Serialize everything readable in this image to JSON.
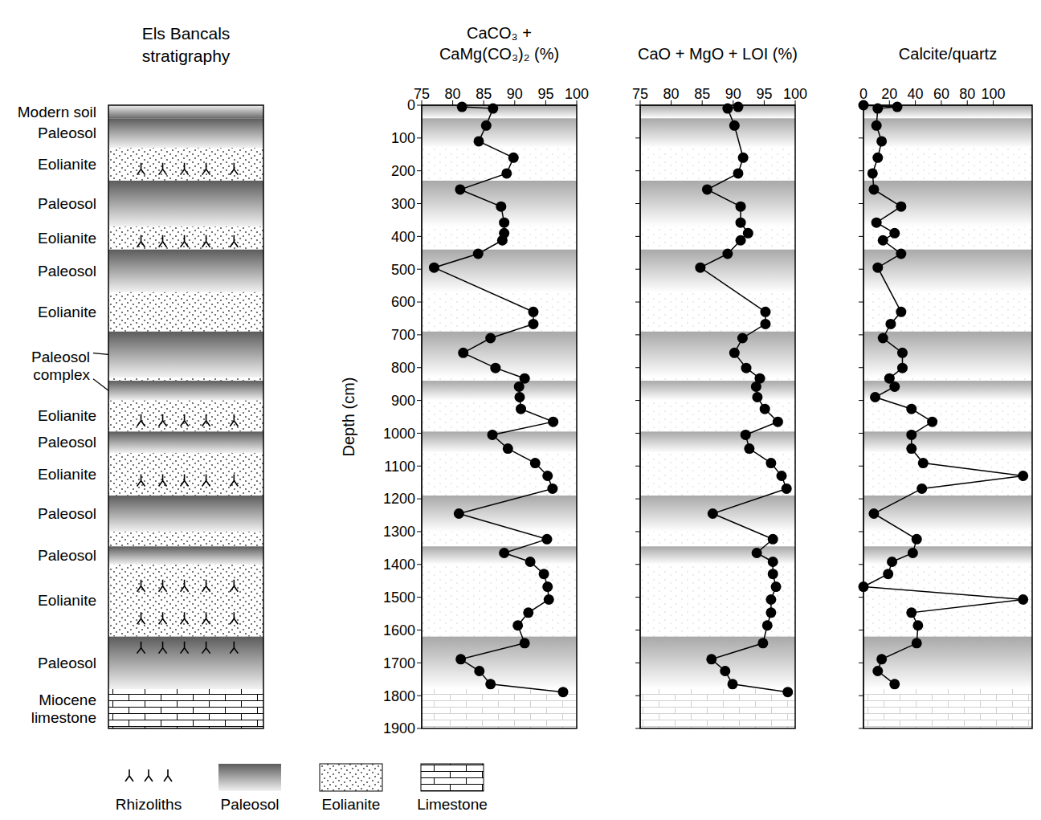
{
  "stratigraphy": {
    "title": "Els Bancals stratigraphy",
    "depth_range": [
      0,
      1900
    ],
    "layers": [
      {
        "type": "soil",
        "label": "Modern soil",
        "top": 0,
        "bottom": 40
      },
      {
        "type": "paleosol",
        "label": "Paleosol",
        "top": 40,
        "bottom": 130
      },
      {
        "type": "eolianite",
        "label": "Eolianite",
        "top": 130,
        "bottom": 230,
        "rhizoliths": true
      },
      {
        "type": "paleosol",
        "label": "Paleosol",
        "top": 230,
        "bottom": 370
      },
      {
        "type": "eolianite",
        "label": "Eolianite",
        "top": 370,
        "bottom": 440,
        "rhizoliths": true
      },
      {
        "type": "paleosol",
        "label": "Paleosol",
        "top": 440,
        "bottom": 570
      },
      {
        "type": "eolianite",
        "label": "Eolianite",
        "top": 570,
        "bottom": 690
      },
      {
        "type": "paleosol",
        "top": 690,
        "bottom": 830
      },
      {
        "type": "eolianite",
        "top": 830,
        "bottom": 840
      },
      {
        "type": "paleosol",
        "top": 840,
        "bottom": 900
      },
      {
        "type": "eolianite",
        "label": "Eolianite",
        "top": 900,
        "bottom": 995,
        "rhizoliths": true
      },
      {
        "type": "paleosol",
        "label": "Paleosol",
        "top": 995,
        "bottom": 1060
      },
      {
        "type": "eolianite",
        "label": "Eolianite",
        "top": 1060,
        "bottom": 1190,
        "rhizoliths": true
      },
      {
        "type": "paleosol",
        "label": "Paleosol",
        "top": 1190,
        "bottom": 1300
      },
      {
        "type": "eolianite",
        "top": 1300,
        "bottom": 1345
      },
      {
        "type": "paleosol",
        "label": "Paleosol",
        "top": 1345,
        "bottom": 1400
      },
      {
        "type": "eolianite",
        "label": "Eolianite",
        "top": 1400,
        "bottom": 1620,
        "rhizoliths": true
      },
      {
        "type": "paleosol",
        "label": "Paleosol",
        "top": 1620,
        "bottom": 1780,
        "rhizoliths": true
      },
      {
        "type": "limestone",
        "label": "Miocene limestone",
        "top": 1780,
        "bottom": 1900
      }
    ],
    "group_labels": [
      {
        "label": "Paleosol complex",
        "layers": [
          7,
          9
        ]
      }
    ]
  },
  "key": [
    {
      "label": "Rhizoliths",
      "type": "rhizolith"
    },
    {
      "label": "Paleosol",
      "type": "paleosol"
    },
    {
      "label": "Eolianite",
      "type": "eolianite"
    },
    {
      "label": "Limestone",
      "type": "limestone"
    }
  ],
  "chart_data": [
    {
      "type": "line",
      "title": "CaCO₃ + CaMg(CO₃)₂ (%)",
      "ylabel": "Depth (cm)",
      "x": [
        81.5,
        86.5,
        85.4,
        84.2,
        89.8,
        88.7,
        81.2,
        87.8,
        88.3,
        88.3,
        88.0,
        84.1,
        77.0,
        93.0,
        93.0,
        86.1,
        81.7,
        86.9,
        91.6,
        90.7,
        90.8,
        91.0,
        96.2,
        86.4,
        88.9,
        93.3,
        95.3,
        96.1,
        81.0,
        95.2,
        88.3,
        92.5,
        94.7,
        95.3,
        95.5,
        92.2,
        90.5,
        91.6,
        81.3,
        84.3,
        86.1,
        97.8
      ],
      "y": [
        5,
        10,
        62,
        110,
        160,
        208,
        257,
        309,
        358,
        390,
        412,
        453,
        495,
        630,
        667,
        710,
        755,
        801,
        833,
        858,
        890,
        926,
        965,
        1005,
        1047,
        1091,
        1130,
        1169,
        1245,
        1323,
        1365,
        1392,
        1429,
        1468,
        1507,
        1547,
        1586,
        1640,
        1689,
        1725,
        1765,
        1789
      ],
      "xlim": [
        75,
        100
      ],
      "xticks": [
        75,
        80,
        85,
        90,
        95,
        100
      ],
      "ylim": [
        0,
        1900
      ],
      "yticks": [
        0,
        100,
        200,
        300,
        400,
        500,
        600,
        700,
        800,
        900,
        1000,
        1100,
        1200,
        1300,
        1400,
        1500,
        1600,
        1700,
        1800,
        1900
      ],
      "color": "#000000",
      "marker": "circle",
      "line_style": "solid"
    },
    {
      "type": "line",
      "title": "CaO + MgO + LOI (%)",
      "x": [
        90.8,
        89.1,
        90.2,
        91.6,
        90.8,
        85.8,
        91.2,
        91.2,
        92.4,
        91.2,
        89.1,
        84.7,
        95.2,
        95.2,
        91.5,
        90.2,
        92.1,
        94.3,
        93.7,
        93.9,
        95.1,
        97.2,
        92.0,
        92.6,
        96.1,
        97.8,
        98.6,
        86.7,
        96.4,
        93.8,
        96.4,
        96.4,
        96.9,
        96.1,
        96.1,
        95.5,
        94.8,
        86.5,
        88.7,
        89.9,
        98.8
      ],
      "y": [
        5,
        10,
        62,
        160,
        208,
        257,
        309,
        358,
        390,
        412,
        453,
        495,
        630,
        667,
        710,
        755,
        801,
        833,
        858,
        890,
        926,
        965,
        1005,
        1047,
        1091,
        1130,
        1169,
        1245,
        1323,
        1365,
        1392,
        1429,
        1468,
        1507,
        1547,
        1586,
        1640,
        1689,
        1725,
        1765,
        1789
      ],
      "xlim": [
        75,
        100
      ],
      "xticks": [
        75,
        80,
        85,
        90,
        95,
        100
      ],
      "ylim": [
        0,
        1900
      ],
      "yticks": [
        0,
        100,
        200,
        300,
        400,
        500,
        600,
        700,
        800,
        900,
        1000,
        1100,
        1200,
        1300,
        1400,
        1500,
        1600,
        1700,
        1800,
        1900
      ],
      "tick_labels": "x",
      "color": "#000000",
      "marker": "circle",
      "line_style": "solid"
    },
    {
      "type": "line",
      "title": "Calcite/quartz",
      "x": [
        0,
        26,
        11,
        10,
        14,
        11,
        7,
        8,
        29,
        10,
        24,
        15,
        29,
        11,
        29,
        21,
        15,
        30,
        30,
        20,
        24,
        9,
        37,
        53,
        37,
        37,
        46,
        123,
        45,
        8,
        41,
        38,
        22,
        19,
        0,
        123,
        37,
        42,
        41,
        14,
        11,
        24
      ],
      "y": [
        0,
        5,
        10,
        62,
        110,
        160,
        208,
        257,
        309,
        358,
        390,
        412,
        453,
        495,
        630,
        667,
        710,
        755,
        801,
        833,
        858,
        890,
        926,
        965,
        1005,
        1047,
        1091,
        1130,
        1169,
        1245,
        1323,
        1365,
        1392,
        1429,
        1468,
        1507,
        1547,
        1586,
        1640,
        1689,
        1725,
        1765
      ],
      "xlim": [
        0,
        130
      ],
      "xticks": [
        0,
        20,
        40,
        60,
        80,
        100
      ],
      "ylim": [
        0,
        1900
      ],
      "yticks": [
        0,
        100,
        200,
        300,
        400,
        500,
        600,
        700,
        800,
        900,
        1000,
        1100,
        1200,
        1300,
        1400,
        1500,
        1600,
        1700,
        1800,
        1900
      ],
      "tick_labels": "x",
      "color": "#000000",
      "marker": "circle",
      "line_style": "solid"
    }
  ]
}
